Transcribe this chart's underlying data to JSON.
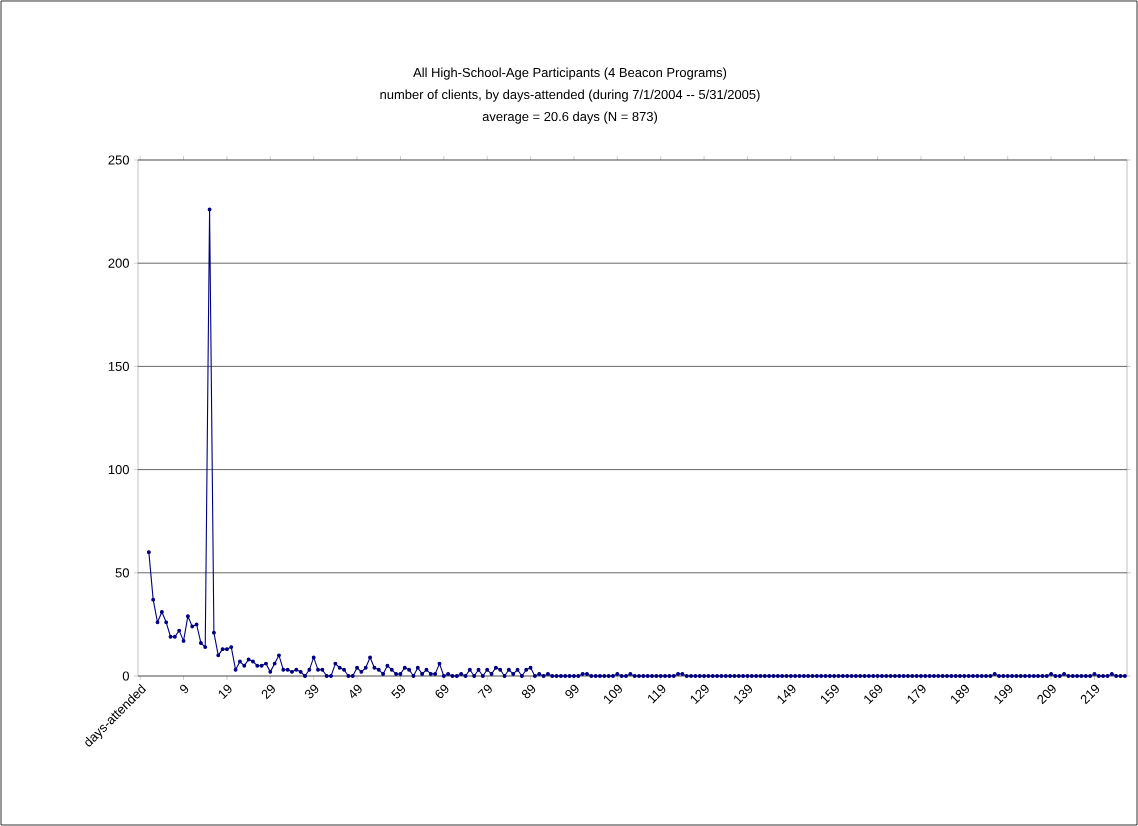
{
  "chart_data": {
    "type": "line",
    "title": "All High-School-Age Participants (4 Beacon Programs)",
    "subtitle": "number of clients, by days-attended (during 7/1/2004 -- 5/31/2005)",
    "annotations": [
      "average = 20.6 days (N = 873)"
    ],
    "categories": [
      "days-attended",
      null,
      null,
      null,
      null,
      null,
      null,
      null,
      null,
      null,
      "9",
      null,
      null,
      null,
      null,
      null,
      null,
      null,
      null,
      null,
      "19",
      null,
      null,
      null,
      null,
      null,
      null,
      null,
      null,
      null,
      "29",
      null,
      null,
      null,
      null,
      null,
      null,
      null,
      null,
      null,
      "39",
      null,
      null,
      null,
      null,
      null,
      null,
      null,
      null,
      null,
      "49",
      null,
      null,
      null,
      null,
      null,
      null,
      null,
      null,
      null,
      "59",
      null,
      null,
      null,
      null,
      null,
      null,
      null,
      null,
      null,
      "69",
      null,
      null,
      null,
      null,
      null,
      null,
      null,
      null,
      null,
      "79",
      null,
      null,
      null,
      null,
      null,
      null,
      null,
      null,
      null,
      "89",
      null,
      null,
      null,
      null,
      null,
      null,
      null,
      null,
      null,
      "99",
      null,
      null,
      null,
      null,
      null,
      null,
      null,
      null,
      null,
      "109",
      null,
      null,
      null,
      null,
      null,
      null,
      null,
      null,
      null,
      "119",
      null,
      null,
      null,
      null,
      null,
      null,
      null,
      null,
      null,
      "129",
      null,
      null,
      null,
      null,
      null,
      null,
      null,
      null,
      null,
      "139",
      null,
      null,
      null,
      null,
      null,
      null,
      null,
      null,
      null,
      "149",
      null,
      null,
      null,
      null,
      null,
      null,
      null,
      null,
      null,
      "159",
      null,
      null,
      null,
      null,
      null,
      null,
      null,
      null,
      null,
      "169",
      null,
      null,
      null,
      null,
      null,
      null,
      null,
      null,
      null,
      "179",
      null,
      null,
      null,
      null,
      null,
      null,
      null,
      null,
      null,
      "189",
      null,
      null,
      null,
      null,
      null,
      null,
      null,
      null,
      null,
      "199",
      null,
      null,
      null,
      null,
      null,
      null,
      null,
      null,
      null,
      "209",
      null,
      null,
      null,
      null,
      null,
      null,
      null,
      null,
      null,
      "219",
      null,
      null,
      null,
      null,
      null,
      null,
      null
    ],
    "series": [
      {
        "color": "#000080",
        "values": [
          null,
          null,
          60,
          37,
          26,
          31,
          26,
          19,
          19,
          22,
          17,
          29,
          24,
          25,
          16,
          14,
          226,
          21,
          10,
          13,
          13,
          14,
          3,
          7,
          5,
          8,
          7,
          5,
          5,
          6,
          2,
          6,
          10,
          3,
          3,
          2,
          3,
          2,
          0,
          3,
          9,
          3,
          3,
          0,
          0,
          6,
          4,
          3,
          0,
          0,
          4,
          2,
          4,
          9,
          4,
          3,
          1,
          5,
          3,
          1,
          1,
          4,
          3,
          0,
          4,
          1,
          3,
          1,
          1,
          6,
          0,
          1,
          0,
          0,
          1,
          0,
          3,
          0,
          3,
          0,
          3,
          1,
          4,
          3,
          0,
          3,
          1,
          3,
          0,
          3,
          4,
          0,
          1,
          0,
          1,
          0,
          0,
          0,
          0,
          0,
          0,
          0,
          1,
          1,
          0,
          0,
          0,
          0,
          0,
          0,
          1,
          0,
          0,
          1,
          0,
          0,
          0,
          0,
          0,
          0,
          0,
          0,
          0,
          0,
          1,
          1,
          0,
          0,
          0,
          0,
          0,
          0,
          0,
          0,
          0,
          0,
          0,
          0,
          0,
          0,
          0,
          0,
          0,
          0,
          0,
          0,
          0,
          0,
          0,
          0,
          0,
          0,
          0,
          0,
          0,
          0,
          0,
          0,
          0,
          0,
          0,
          0,
          0,
          0,
          0,
          0,
          0,
          0,
          0,
          0,
          0,
          0,
          0,
          0,
          0,
          0,
          0,
          0,
          0,
          0,
          0,
          0,
          0,
          0,
          0,
          0,
          0,
          0,
          0,
          0,
          0,
          0,
          0,
          0,
          0,
          0,
          0,
          1,
          0,
          0,
          0,
          0,
          0,
          0,
          0,
          0,
          0,
          0,
          0,
          0,
          1,
          0,
          0,
          1,
          0,
          0,
          0,
          0,
          0,
          0,
          1,
          0,
          0,
          0,
          1,
          0,
          0,
          0
        ]
      }
    ],
    "ylim": [
      0,
      250
    ],
    "yticks": [
      0,
      50,
      100,
      150,
      200,
      250
    ],
    "grid": "y",
    "marker": "circle",
    "line_style": "solid"
  }
}
